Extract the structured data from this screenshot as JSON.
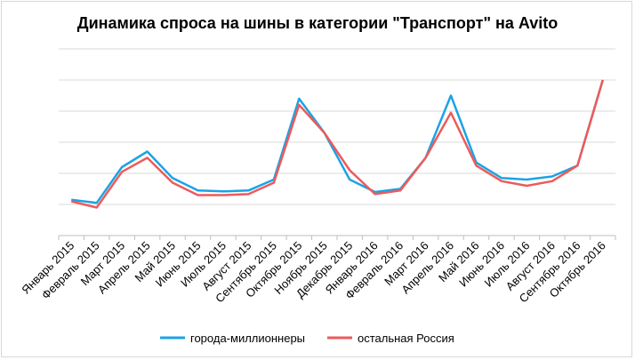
{
  "chart_data": {
    "type": "line",
    "title": "Динамика спроса на шины в категории \"Транспорт\" на Avito",
    "xlabel": "",
    "ylabel": "",
    "categories": [
      "Январь 2015",
      "Февраль 2015",
      "Март 2015",
      "Апрель 2015",
      "Май 2015",
      "Июнь 2015",
      "Июль 2015",
      "Август 2015",
      "Сентябрь 2015",
      "Октябрь 2015",
      "Ноябрь 2015",
      "Декабрь 2015",
      "Январь 2016",
      "Февраль 2016",
      "Март 2016",
      "Апрель 2016",
      "Май 2016",
      "Июнь 2016",
      "Июль 2016",
      "Август 2016",
      "Сентябрь 2016",
      "Октябрь 2016"
    ],
    "ylim": [
      0,
      6
    ],
    "grid": true,
    "legend": "bottom",
    "series": [
      {
        "name": "города-миллионнеры",
        "color": "#1ba3e5",
        "values": [
          1.15,
          1.05,
          2.2,
          2.7,
          1.85,
          1.45,
          1.42,
          1.45,
          1.8,
          4.4,
          3.3,
          1.8,
          1.4,
          1.5,
          2.5,
          4.5,
          2.35,
          1.85,
          1.8,
          1.9,
          2.25,
          5.0
        ]
      },
      {
        "name": "остальная Россия",
        "color": "#ee5a5a",
        "values": [
          1.1,
          0.9,
          2.05,
          2.5,
          1.7,
          1.3,
          1.3,
          1.33,
          1.7,
          4.2,
          3.3,
          2.1,
          1.33,
          1.45,
          2.5,
          3.95,
          2.25,
          1.75,
          1.6,
          1.75,
          2.25,
          5.0
        ]
      }
    ]
  }
}
